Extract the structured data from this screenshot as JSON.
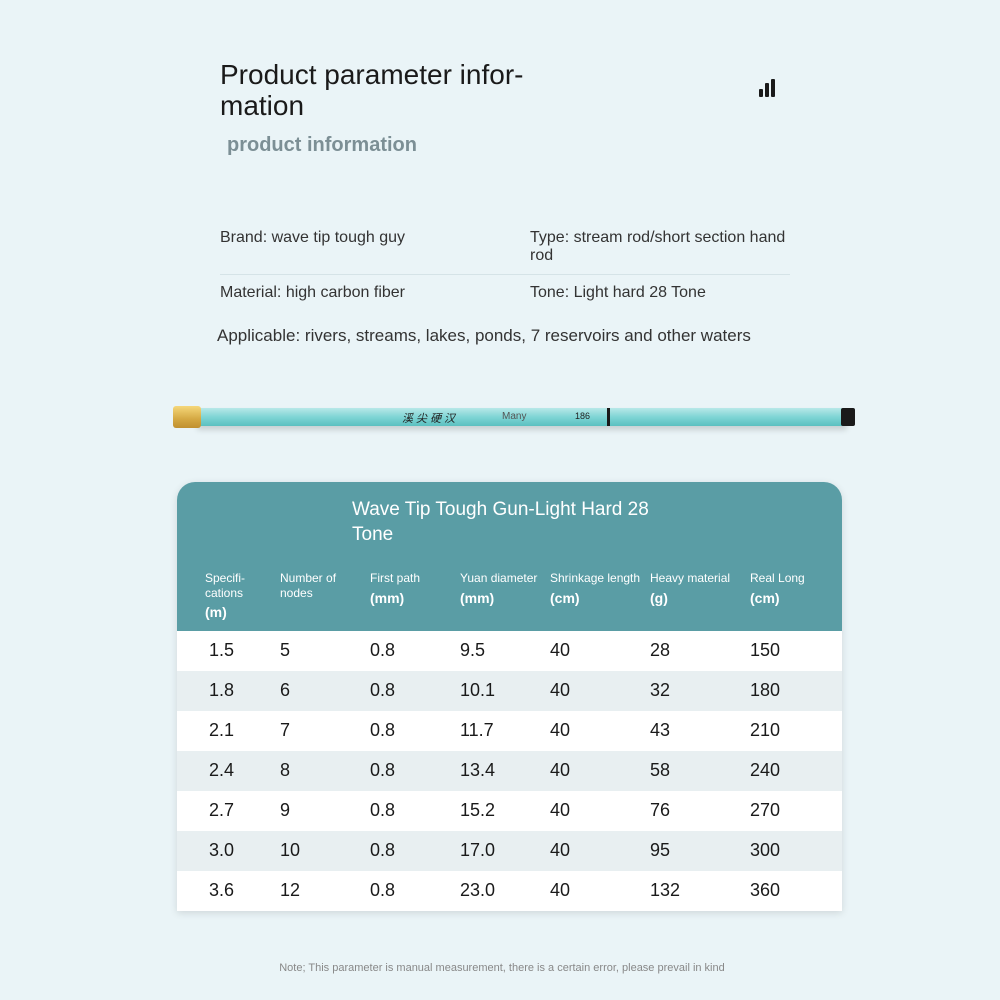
{
  "header": {
    "title": "Product parameter infor­mation",
    "subtitle": "product information"
  },
  "info": {
    "brand_label": "Brand:",
    "brand_value": "wave tip tough guy",
    "type_label": "Type:",
    "type_value": "stream rod/short section hand rod",
    "material_label": "Material:",
    "material_value": "high carbon fiber",
    "tone_label": "Tone:",
    "tone_value": "Light hard 28 Tone",
    "applicable_label": "Applicable:",
    "applicable_value": "rivers, streams, lakes, ponds, 7 reservoirs and other waters"
  },
  "rod": {
    "script": "溪 尖 硬 汉",
    "many": "Many",
    "num": "186"
  },
  "table": {
    "title": "Wave Tip Tough Gun-Light Hard 28 Tone",
    "columns": [
      {
        "label": "Specifi­cations",
        "unit": "(m)"
      },
      {
        "label": "Number of nodes",
        "unit": ""
      },
      {
        "label": "First path",
        "unit": "(mm)"
      },
      {
        "label": "Yuan di­ameter",
        "unit": "(mm)"
      },
      {
        "label": "Shrinkage length",
        "unit": "(cm)"
      },
      {
        "label": "Heavy ma­terial",
        "unit": "(g)"
      },
      {
        "label": "Real Long",
        "unit": "(cm)"
      }
    ],
    "rows": [
      [
        "1.5",
        "5",
        "0.8",
        "9.5",
        "40",
        "28",
        "150"
      ],
      [
        "1.8",
        "6",
        "0.8",
        "10.1",
        "40",
        "32",
        "180"
      ],
      [
        "2.1",
        "7",
        "0.8",
        "11.7",
        "40",
        "43",
        "210"
      ],
      [
        "2.4",
        "8",
        "0.8",
        "13.4",
        "40",
        "58",
        "240"
      ],
      [
        "2.7",
        "9",
        "0.8",
        "15.2",
        "40",
        "76",
        "270"
      ],
      [
        "3.0",
        "10",
        "0.8",
        "17.0",
        "40",
        "95",
        "300"
      ],
      [
        "3.6",
        "12",
        "0.8",
        "23.0",
        "40",
        "132",
        "360"
      ]
    ]
  },
  "note": "Note; This parameter is manual measurement, there is a certain error, please prevail in kind",
  "colors": {
    "page_bg": "#eaf4f7",
    "table_header_bg": "#5a9da5",
    "row_alt_bg": "#e8eff1",
    "text_dark": "#1a1a1a",
    "subtitle_color": "#7c8f95"
  }
}
